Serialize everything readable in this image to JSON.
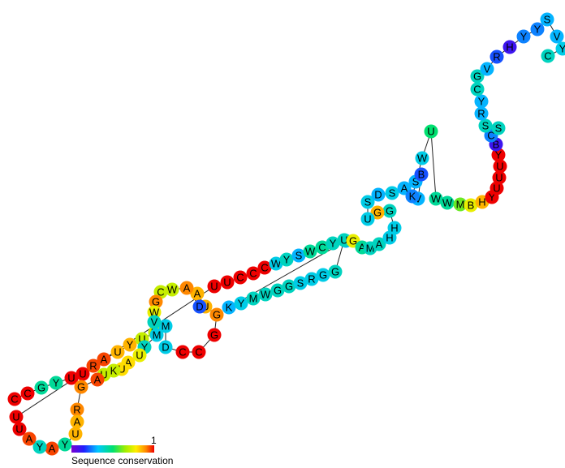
{
  "nucleotides": [
    "C",
    "C",
    "G",
    "Y",
    "U",
    "U",
    "R",
    "A",
    "U",
    "Y",
    "U",
    "M",
    "M",
    "D",
    "C",
    "C",
    "G",
    "G",
    "U",
    "A",
    "D",
    "A",
    "W",
    "C",
    "G",
    "W",
    "V",
    "M",
    "Y",
    "U",
    "A",
    "U",
    "K",
    "U",
    "A",
    "G",
    "R",
    "A",
    "U",
    "Y",
    "A",
    "Y",
    "A",
    "U",
    "U",
    "U",
    "U",
    "C",
    "C",
    "C",
    "W",
    "Y",
    "S",
    "W",
    "C",
    "Y",
    "K",
    "K",
    "Y",
    "M",
    "W",
    "G",
    "G",
    "S",
    "R",
    "G",
    "G",
    "U",
    "G",
    "A",
    "M",
    "A",
    "H",
    "H",
    "G",
    "G",
    "U",
    "S",
    "D",
    "S",
    "A",
    "S",
    "B",
    "V",
    "K",
    "W",
    "U",
    "W",
    "W",
    "M",
    "B",
    "H",
    "Y",
    "U",
    "U",
    "U",
    "Y",
    "B",
    "C",
    "S",
    "S",
    "R",
    "Y",
    "C",
    "G",
    "V",
    "R",
    "H",
    "Y",
    "Y",
    "S",
    "V",
    "Y",
    "C",
    "S"
  ],
  "conservation": [
    1.0,
    1.0,
    0.45,
    0.45,
    1.0,
    1.0,
    0.95,
    0.95,
    0.85,
    0.85,
    0.7,
    0.7,
    0.35,
    0.35,
    1.0,
    1.0,
    1.0,
    0.9,
    0.85,
    0.85,
    0.2,
    0.9,
    0.7,
    0.7,
    0.9,
    0.75,
    0.4,
    0.35,
    0.4,
    0.75,
    0.8,
    0.8,
    0.7,
    0.7,
    0.95,
    0.9,
    0.9,
    0.85,
    0.85,
    0.45,
    0.95,
    0.4,
    0.95,
    1.0,
    1.0,
    1.0,
    1.0,
    1.0,
    1.0,
    1.0,
    0.35,
    0.4,
    0.3,
    0.45,
    0.45,
    0.4,
    0.3,
    0.3,
    0.35,
    0.4,
    0.4,
    0.4,
    0.4,
    0.35,
    0.35,
    0.35,
    0.4,
    0.4,
    0.75,
    0.45,
    0.4,
    0.4,
    0.35,
    0.35,
    0.4,
    0.85,
    0.35,
    0.35,
    0.3,
    0.35,
    0.3,
    0.3,
    0.2,
    0.3,
    0.25,
    0.35,
    0.5,
    0.45,
    0.45,
    0.6,
    0.75,
    0.85,
    1.0,
    1.0,
    1.0,
    1.0,
    1.0,
    0.1,
    0.25,
    0.4,
    0.4,
    0.3,
    0.3,
    0.4,
    0.4,
    0.3,
    0.2,
    0.1,
    0.25,
    0.25,
    0.3,
    0.3,
    0.35,
    0.4,
    0.4
  ],
  "legend": {
    "label": "Sequence conservation",
    "max_label": "1"
  }
}
